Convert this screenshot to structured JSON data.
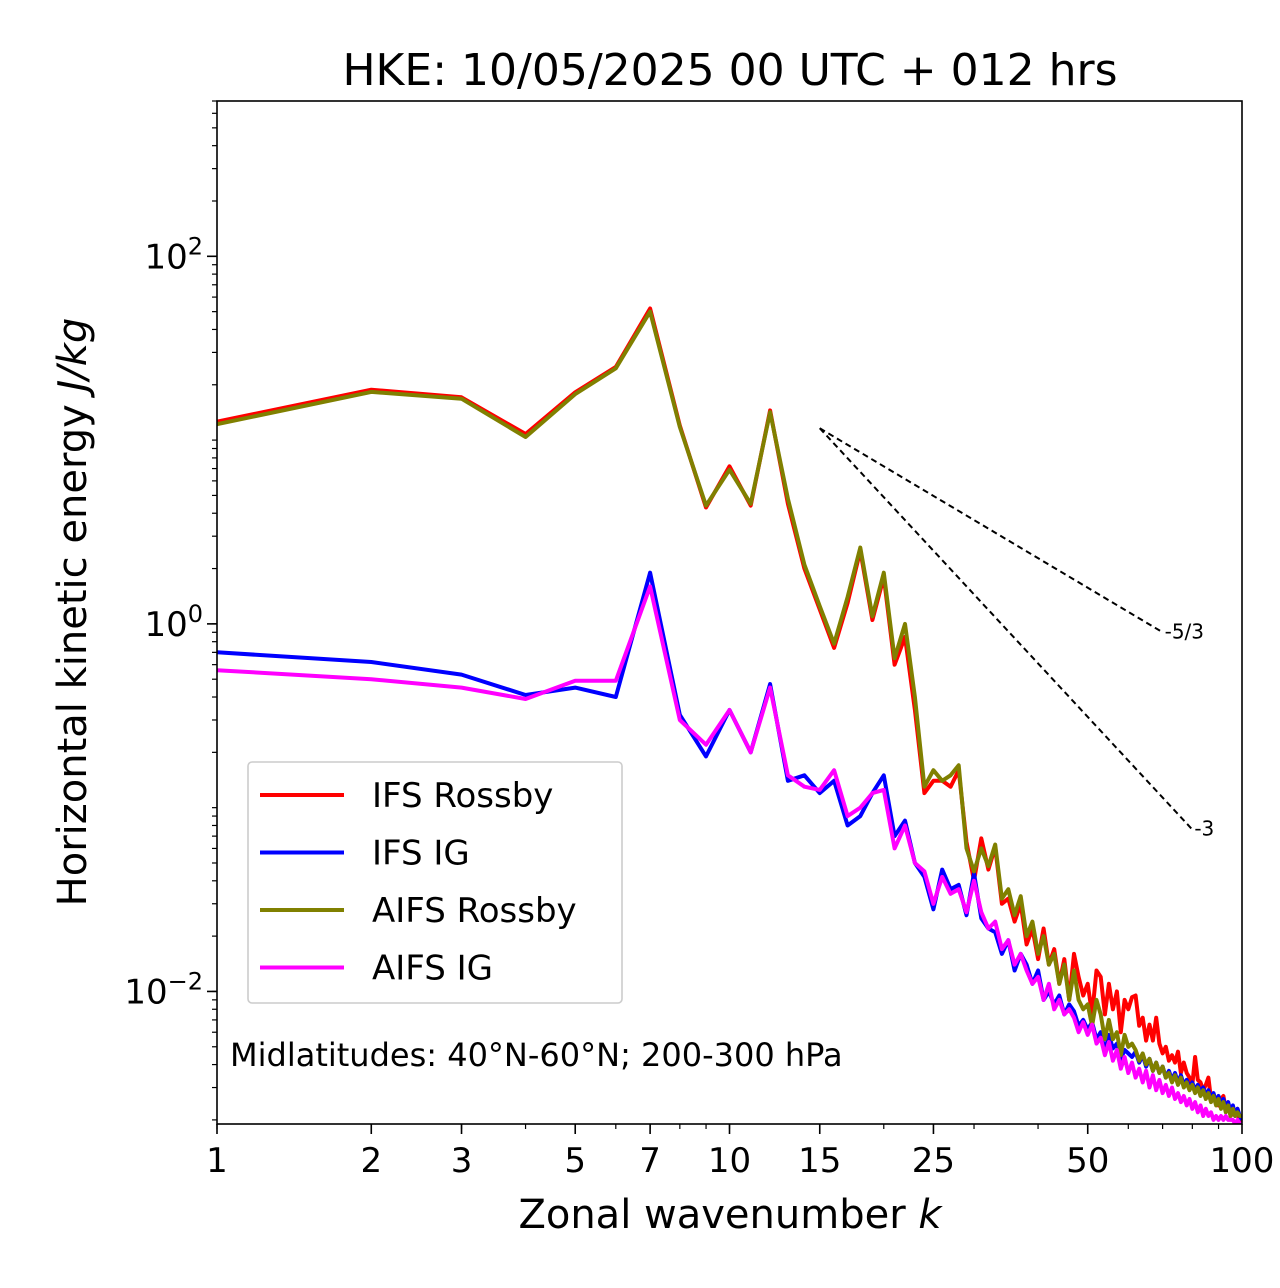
{
  "chart_data": {
    "type": "line",
    "title": "HKE: 10/05/2025 00 UTC + 012 hrs",
    "xlabel": "Zonal wavenumber",
    "xlabel_var": "k",
    "ylabel": "Horizontal kinetic energy",
    "ylabel_unit": "J/kg",
    "xscale": "log",
    "yscale": "log",
    "xlim": [
      1,
      100
    ],
    "ylim": [
      0.0019,
      700
    ],
    "x_ticks": [
      1,
      2,
      3,
      5,
      7,
      10,
      15,
      25,
      50,
      100
    ],
    "x_tick_labels": [
      "1",
      "2",
      "3",
      "5",
      "7",
      "10",
      "15",
      "25",
      "50",
      "100"
    ],
    "y_ticks": [
      {
        "value": 100,
        "base": "10",
        "exp": "2"
      },
      {
        "value": 1,
        "base": "10",
        "exp": "0"
      },
      {
        "value": 0.01,
        "base": "10",
        "exp": "−2"
      }
    ],
    "annotation": "Midlatitudes: 40°N-60°N; 200-300 hPa",
    "legend_position": "lower-left",
    "reference_lines": [
      {
        "label": "-5/3",
        "slope": -1.6667,
        "x": [
          15,
          70
        ],
        "y": [
          11.6,
          0.9
        ]
      },
      {
        "label": "-3",
        "slope": -3,
        "x": [
          15,
          80
        ],
        "y": [
          11.6,
          0.076
        ]
      }
    ],
    "series": [
      {
        "name": "IFS Rossby",
        "color": "#ff0000",
        "x": [
          1,
          2,
          3,
          4,
          5,
          6,
          7,
          8,
          9,
          10,
          11,
          12,
          13,
          14,
          15,
          16,
          17,
          18,
          19,
          20,
          21,
          22,
          23,
          24,
          25,
          26,
          27,
          28,
          29,
          30,
          31,
          32,
          33,
          34,
          35,
          36,
          37,
          38,
          39,
          40,
          41,
          42,
          43,
          44,
          45,
          46,
          47,
          48,
          49,
          50,
          51,
          52,
          53,
          54,
          55,
          56,
          57,
          58,
          59,
          60,
          61,
          62,
          63,
          64,
          65,
          66,
          67,
          68,
          69,
          70,
          71,
          72,
          73,
          74,
          75,
          76,
          77,
          78,
          79,
          80,
          81,
          82,
          83,
          84,
          85,
          86,
          87,
          88,
          89,
          90,
          91,
          92,
          93,
          94,
          95,
          96,
          97,
          98,
          99,
          100
        ],
        "y": [
          12.6,
          18.8,
          17.1,
          10.8,
          18.2,
          25.0,
          52.0,
          12.0,
          4.3,
          7.2,
          4.4,
          14.5,
          4.5,
          2.0,
          1.2,
          0.74,
          1.3,
          2.5,
          1.05,
          1.8,
          0.6,
          0.85,
          0.34,
          0.12,
          0.14,
          0.14,
          0.13,
          0.16,
          0.065,
          0.04,
          0.068,
          0.046,
          0.061,
          0.03,
          0.032,
          0.024,
          0.03,
          0.018,
          0.022,
          0.015,
          0.022,
          0.014,
          0.017,
          0.011,
          0.015,
          0.009,
          0.016,
          0.012,
          0.0095,
          0.011,
          0.0075,
          0.013,
          0.012,
          0.0075,
          0.011,
          0.008,
          0.01,
          0.006,
          0.009,
          0.008,
          0.0093,
          0.0095,
          0.0065,
          0.0072,
          0.0054,
          0.0066,
          0.0054,
          0.0072,
          0.0052,
          0.0046,
          0.005,
          0.0042,
          0.0045,
          0.0041,
          0.0047,
          0.0036,
          0.0041,
          0.0036,
          0.0034,
          0.0031,
          0.0044,
          0.0033,
          0.0032,
          0.0029,
          0.0031,
          0.0034,
          0.0026,
          0.0027,
          0.0025,
          0.0024,
          0.0026,
          0.0027,
          0.0023,
          0.0024,
          0.0021,
          0.0022,
          0.0021,
          0.0023,
          0.0019,
          0.0021
        ]
      },
      {
        "name": "IFS IG",
        "color": "#0000ff",
        "x": [
          1,
          2,
          3,
          4,
          5,
          6,
          7,
          8,
          9,
          10,
          11,
          12,
          13,
          14,
          15,
          16,
          17,
          18,
          19,
          20,
          21,
          22,
          23,
          24,
          25,
          26,
          27,
          28,
          29,
          30,
          31,
          32,
          33,
          34,
          35,
          36,
          37,
          38,
          39,
          40,
          41,
          42,
          43,
          44,
          45,
          46,
          47,
          48,
          49,
          50,
          51,
          52,
          53,
          54,
          55,
          56,
          57,
          58,
          59,
          60,
          61,
          62,
          63,
          64,
          65,
          66,
          67,
          68,
          69,
          70,
          71,
          72,
          73,
          74,
          75,
          76,
          77,
          78,
          79,
          80,
          81,
          82,
          83,
          84,
          85,
          86,
          87,
          88,
          89,
          90,
          91,
          92,
          93,
          94,
          95,
          96,
          97,
          98,
          99,
          100
        ],
        "y": [
          0.7,
          0.62,
          0.53,
          0.41,
          0.45,
          0.4,
          1.9,
          0.32,
          0.19,
          0.34,
          0.2,
          0.47,
          0.14,
          0.15,
          0.12,
          0.14,
          0.08,
          0.09,
          0.12,
          0.15,
          0.07,
          0.085,
          0.05,
          0.042,
          0.028,
          0.046,
          0.036,
          0.038,
          0.026,
          0.044,
          0.025,
          0.022,
          0.021,
          0.016,
          0.019,
          0.013,
          0.016,
          0.014,
          0.011,
          0.013,
          0.009,
          0.01,
          0.0085,
          0.0095,
          0.0075,
          0.0085,
          0.0078,
          0.0065,
          0.007,
          0.0062,
          0.0068,
          0.0055,
          0.006,
          0.0047,
          0.0058,
          0.0049,
          0.0052,
          0.0043,
          0.0048,
          0.0046,
          0.0044,
          0.0047,
          0.0041,
          0.0045,
          0.0039,
          0.0043,
          0.0037,
          0.0041,
          0.0036,
          0.0039,
          0.0034,
          0.0037,
          0.0033,
          0.0036,
          0.0032,
          0.0035,
          0.0031,
          0.0033,
          0.003,
          0.0032,
          0.0029,
          0.0031,
          0.0028,
          0.003,
          0.0027,
          0.0029,
          0.0026,
          0.0028,
          0.0025,
          0.0027,
          0.0024,
          0.0026,
          0.0023,
          0.0025,
          0.0022,
          0.0024,
          0.0021,
          0.0023,
          0.0021,
          0.002
        ]
      },
      {
        "name": "AIFS Rossby",
        "color": "#808000",
        "x": [
          1,
          2,
          3,
          4,
          5,
          6,
          7,
          8,
          9,
          10,
          11,
          12,
          13,
          14,
          15,
          16,
          17,
          18,
          19,
          20,
          21,
          22,
          23,
          24,
          25,
          26,
          27,
          28,
          29,
          30,
          31,
          32,
          33,
          34,
          35,
          36,
          37,
          38,
          39,
          40,
          41,
          42,
          43,
          44,
          45,
          46,
          47,
          48,
          49,
          50,
          51,
          52,
          53,
          54,
          55,
          56,
          57,
          58,
          59,
          60,
          61,
          62,
          63,
          64,
          65,
          66,
          67,
          68,
          69,
          70,
          71,
          72,
          73,
          74,
          75,
          76,
          77,
          78,
          79,
          80,
          81,
          82,
          83,
          84,
          85,
          86,
          87,
          88,
          89,
          90,
          91,
          92,
          93,
          94,
          95,
          96,
          97,
          98,
          99,
          100
        ],
        "y": [
          12.2,
          18.3,
          16.8,
          10.4,
          17.8,
          24.6,
          50.0,
          11.8,
          4.4,
          6.9,
          4.5,
          14.2,
          4.8,
          2.1,
          1.25,
          0.78,
          1.4,
          2.6,
          1.1,
          1.9,
          0.65,
          1.0,
          0.4,
          0.13,
          0.16,
          0.14,
          0.15,
          0.17,
          0.06,
          0.045,
          0.06,
          0.048,
          0.063,
          0.032,
          0.036,
          0.026,
          0.033,
          0.02,
          0.024,
          0.016,
          0.02,
          0.014,
          0.016,
          0.011,
          0.014,
          0.009,
          0.013,
          0.009,
          0.008,
          0.0085,
          0.0065,
          0.009,
          0.0075,
          0.0055,
          0.007,
          0.0055,
          0.006,
          0.0045,
          0.0058,
          0.005,
          0.0052,
          0.0048,
          0.0042,
          0.0046,
          0.004,
          0.0043,
          0.0037,
          0.0041,
          0.0036,
          0.0039,
          0.0034,
          0.0036,
          0.0032,
          0.0035,
          0.0031,
          0.0034,
          0.003,
          0.0032,
          0.0029,
          0.0031,
          0.0028,
          0.003,
          0.0027,
          0.0029,
          0.0026,
          0.0028,
          0.0025,
          0.0027,
          0.0024,
          0.0026,
          0.0023,
          0.0025,
          0.0022,
          0.0024,
          0.0021,
          0.0023,
          0.0021,
          0.0022,
          0.0021,
          0.0021
        ]
      },
      {
        "name": "AIFS IG",
        "color": "#ff00ff",
        "x": [
          1,
          2,
          3,
          4,
          5,
          6,
          7,
          8,
          9,
          10,
          11,
          12,
          13,
          14,
          15,
          16,
          17,
          18,
          19,
          20,
          21,
          22,
          23,
          24,
          25,
          26,
          27,
          28,
          29,
          30,
          31,
          32,
          33,
          34,
          35,
          36,
          37,
          38,
          39,
          40,
          41,
          42,
          43,
          44,
          45,
          46,
          47,
          48,
          49,
          50,
          51,
          52,
          53,
          54,
          55,
          56,
          57,
          58,
          59,
          60,
          61,
          62,
          63,
          64,
          65,
          66,
          67,
          68,
          69,
          70,
          71,
          72,
          73,
          74,
          75,
          76,
          77,
          78,
          79,
          80,
          81,
          82,
          83,
          84,
          85,
          86,
          87,
          88,
          89,
          90,
          91,
          92,
          93,
          94,
          95,
          96,
          97,
          98,
          99,
          100
        ],
        "y": [
          0.56,
          0.5,
          0.45,
          0.39,
          0.49,
          0.49,
          1.6,
          0.3,
          0.22,
          0.34,
          0.2,
          0.45,
          0.15,
          0.13,
          0.125,
          0.16,
          0.09,
          0.1,
          0.12,
          0.125,
          0.06,
          0.08,
          0.05,
          0.045,
          0.03,
          0.042,
          0.034,
          0.036,
          0.027,
          0.04,
          0.027,
          0.022,
          0.024,
          0.017,
          0.019,
          0.014,
          0.016,
          0.013,
          0.011,
          0.012,
          0.009,
          0.011,
          0.008,
          0.009,
          0.0075,
          0.008,
          0.0072,
          0.006,
          0.0068,
          0.0058,
          0.0066,
          0.0052,
          0.0056,
          0.0045,
          0.0053,
          0.0042,
          0.0048,
          0.0038,
          0.0044,
          0.0036,
          0.0041,
          0.0034,
          0.0038,
          0.0032,
          0.0037,
          0.003,
          0.0035,
          0.0029,
          0.0033,
          0.0028,
          0.0031,
          0.0027,
          0.003,
          0.0026,
          0.0028,
          0.0025,
          0.0027,
          0.0024,
          0.0026,
          0.0023,
          0.0025,
          0.0022,
          0.0024,
          0.0021,
          0.0023,
          0.0021,
          0.0022,
          0.002,
          0.0021,
          0.002,
          0.0021,
          0.002,
          0.0021,
          0.002,
          0.002,
          0.002,
          0.0019,
          0.002,
          0.0019,
          0.0019
        ]
      }
    ]
  }
}
